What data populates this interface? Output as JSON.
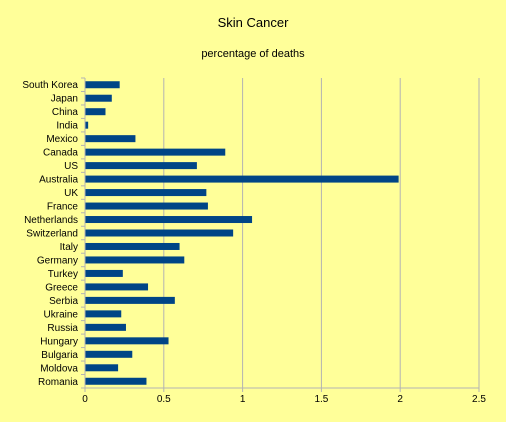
{
  "colors": {
    "background": "#ffff99",
    "bar": "#004586",
    "gridline": "#b3b3b3",
    "axis": "#b3b3b3",
    "text": "#000000"
  },
  "chart_data": {
    "type": "bar",
    "orientation": "horizontal",
    "title": "Skin Cancer",
    "subtitle": "percentage of deaths",
    "xlabel": "",
    "ylabel": "",
    "xlim": [
      0,
      2.5
    ],
    "xticks": [
      0,
      0.5,
      1,
      1.5,
      2,
      2.5
    ],
    "xtick_labels": [
      "0",
      "0.5",
      "1",
      "1.5",
      "2",
      "2.5"
    ],
    "grid": "vertical",
    "legend": "none",
    "categories": [
      "South Korea",
      "Japan",
      "China",
      "India",
      "Mexico",
      "Canada",
      "US",
      "Australia",
      "UK",
      "France",
      "Netherlands",
      "Switzerland",
      "Italy",
      "Germany",
      "Turkey",
      "Greece",
      "Serbia",
      "Ukraine",
      "Russia",
      "Hungary",
      "Bulgaria",
      "Moldova",
      "Romania"
    ],
    "values": [
      0.22,
      0.17,
      0.13,
      0.02,
      0.32,
      0.89,
      0.71,
      1.99,
      0.77,
      0.78,
      1.06,
      0.94,
      0.6,
      0.63,
      0.24,
      0.4,
      0.57,
      0.23,
      0.26,
      0.53,
      0.3,
      0.21,
      0.39
    ]
  }
}
